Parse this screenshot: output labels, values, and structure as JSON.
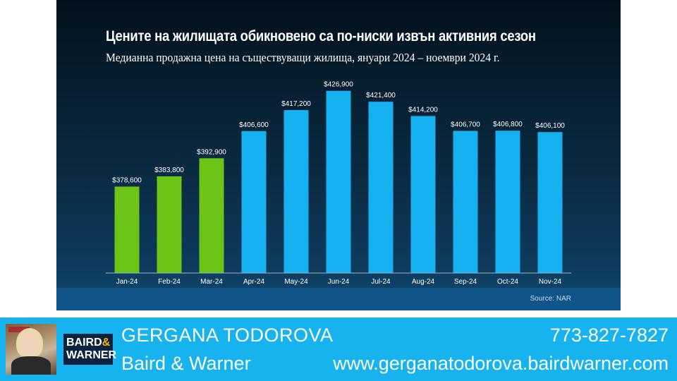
{
  "chart_data": {
    "type": "bar",
    "title": "Цените на жилищата обикновено са по-ниски извън активния сезон",
    "subtitle": "Медианна продажна цена на съществуващи жилища, януари 2024 – ноември 2024 г.",
    "categories": [
      "Jan-24",
      "Feb-24",
      "Mar-24",
      "Apr-24",
      "May-24",
      "Jun-24",
      "Jul-24",
      "Aug-24",
      "Sep-24",
      "Oct-24",
      "Nov-24"
    ],
    "values": [
      378600,
      383800,
      392900,
      406600,
      417200,
      426900,
      421400,
      414200,
      406700,
      406800,
      406100
    ],
    "data_labels": [
      "$378,600",
      "$383,800",
      "$392,900",
      "$406,600",
      "$417,200",
      "$426,900",
      "$421,400",
      "$414,200",
      "$406,700",
      "$406,800",
      "$406,100"
    ],
    "ylim": [
      335000,
      430000
    ],
    "grid": false,
    "colors": {
      "off_season": "#6cc417",
      "active_season": "#15b0f0",
      "axis": "#9fb3c4"
    },
    "off_season_count": 3,
    "source": "Source: NAR"
  },
  "banner": {
    "agent_name": "GERGANA TODOROVA",
    "company": "Baird & Warner",
    "phone": "773-827-7827",
    "website": "www.gerganatodorova.bairdwarner.com",
    "logo_line1": "BAIRD",
    "logo_amp": "&",
    "logo_line2": "WARNER",
    "background": "#17b3ee"
  }
}
